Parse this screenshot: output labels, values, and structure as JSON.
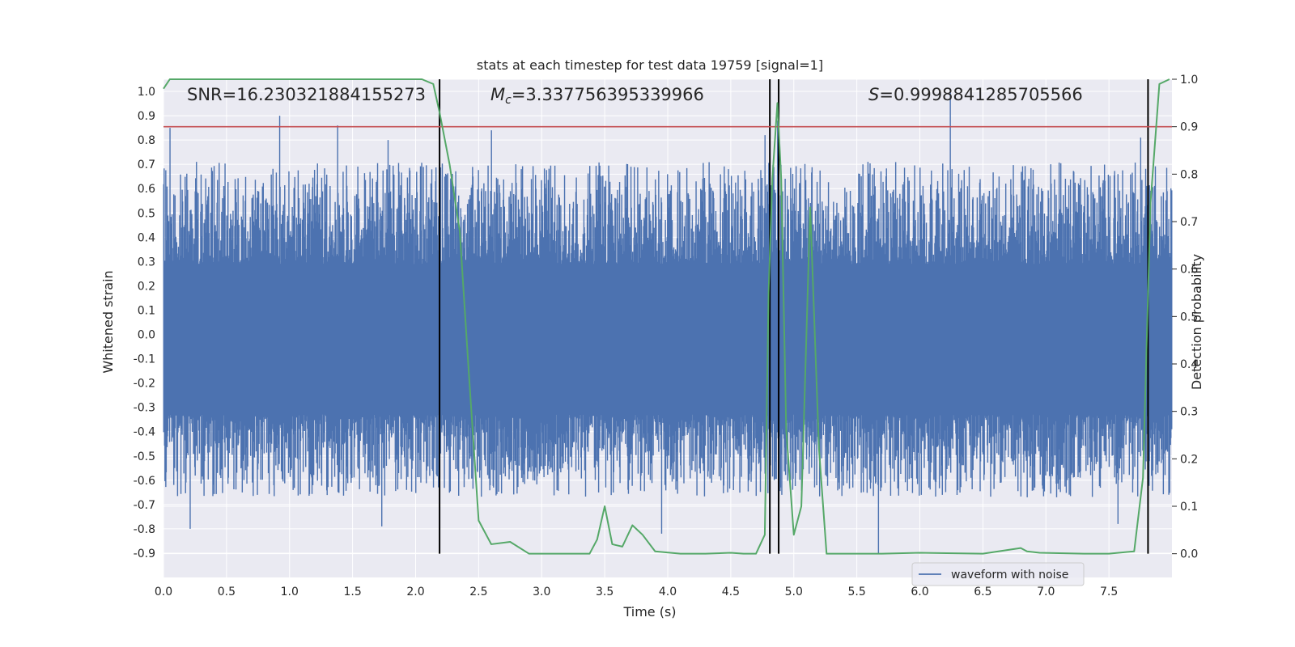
{
  "chart_data": {
    "type": "line",
    "title": "stats at each timestep for test data 19759 [signal=1]",
    "xlabel": "Time (s)",
    "ylabel": "Whitened strain",
    "y2label": "Detection probability",
    "xlim": [
      0.0,
      8.0
    ],
    "ylim": [
      -1.0,
      1.05
    ],
    "y2lim": [
      -0.05,
      1.0
    ],
    "xticks": [
      "0.0",
      "0.5",
      "1.0",
      "1.5",
      "2.0",
      "2.5",
      "3.0",
      "3.5",
      "4.0",
      "4.5",
      "5.0",
      "5.5",
      "6.0",
      "6.5",
      "7.0",
      "7.5"
    ],
    "yticks": [
      "-0.9",
      "-0.8",
      "-0.7",
      "-0.6",
      "-0.5",
      "-0.4",
      "-0.3",
      "-0.2",
      "-0.1",
      "0.0",
      "0.1",
      "0.2",
      "0.3",
      "0.4",
      "0.5",
      "0.6",
      "0.7",
      "0.8",
      "0.9",
      "1.0"
    ],
    "y2ticks": [
      "0.0",
      "0.1",
      "0.2",
      "0.3",
      "0.4",
      "0.5",
      "0.6",
      "0.7",
      "0.8",
      "0.9",
      "1.0"
    ],
    "annotations": {
      "snr": "SNR=16.230321884155273",
      "mc_symbol": "M",
      "mc_sub": "c",
      "mc_value": "=3.337756395339966",
      "s_symbol": "S",
      "s_value": "=0.9998841285705566"
    },
    "legend": {
      "label": "waveform with noise",
      "position": "lower-right"
    },
    "threshold": {
      "axis": "right",
      "value": 0.9,
      "color": "#c44e52"
    },
    "vlines": [
      2.19,
      4.81,
      4.88,
      7.81
    ],
    "series": [
      {
        "name": "waveform with noise",
        "axis": "left",
        "color": "#4c72b0",
        "kind": "noise",
        "band": [
          -0.33,
          0.29
        ],
        "max_peak": 1.0,
        "min_peak": -0.9,
        "peaks": [
          [
            0.05,
            0.85
          ],
          [
            0.92,
            0.9
          ],
          [
            1.38,
            0.86
          ],
          [
            1.78,
            0.8
          ],
          [
            2.6,
            0.84
          ],
          [
            4.77,
            0.82
          ],
          [
            4.87,
            0.88
          ],
          [
            6.24,
            1.0
          ],
          [
            7.75,
            0.81
          ]
        ],
        "troughs": [
          [
            0.21,
            -0.8
          ],
          [
            1.73,
            -0.79
          ],
          [
            3.95,
            -0.82
          ],
          [
            5.67,
            -0.9
          ],
          [
            7.57,
            -0.78
          ]
        ]
      },
      {
        "name": "detection probability",
        "axis": "right",
        "color": "#55a868",
        "x": [
          0.0,
          0.05,
          0.15,
          1.5,
          2.05,
          2.14,
          2.19,
          2.27,
          2.35,
          2.42,
          2.5,
          2.6,
          2.75,
          2.9,
          3.1,
          3.3,
          3.38,
          3.44,
          3.5,
          3.56,
          3.64,
          3.72,
          3.8,
          3.9,
          4.1,
          4.3,
          4.5,
          4.6,
          4.7,
          4.77,
          4.8,
          4.83,
          4.87,
          4.9,
          4.94,
          5.0,
          5.06,
          5.13,
          5.2,
          5.26,
          5.35,
          5.7,
          6.0,
          6.5,
          6.8,
          6.85,
          6.95,
          7.3,
          7.5,
          7.7,
          7.77,
          7.83,
          7.9,
          7.98
        ],
        "y": [
          0.98,
          1.0,
          1.0,
          1.0,
          1.0,
          0.99,
          0.93,
          0.82,
          0.68,
          0.39,
          0.07,
          0.02,
          0.025,
          0.0,
          0.0,
          0.0,
          0.0,
          0.03,
          0.1,
          0.02,
          0.015,
          0.06,
          0.04,
          0.005,
          0.0,
          0.0,
          0.002,
          0.0,
          0.0,
          0.04,
          0.55,
          0.79,
          0.95,
          0.79,
          0.26,
          0.04,
          0.1,
          0.73,
          0.22,
          0.0,
          0.0,
          0.0,
          0.002,
          0.0,
          0.012,
          0.005,
          0.002,
          0.0,
          0.0,
          0.005,
          0.16,
          0.74,
          0.99,
          1.0
        ]
      }
    ]
  }
}
